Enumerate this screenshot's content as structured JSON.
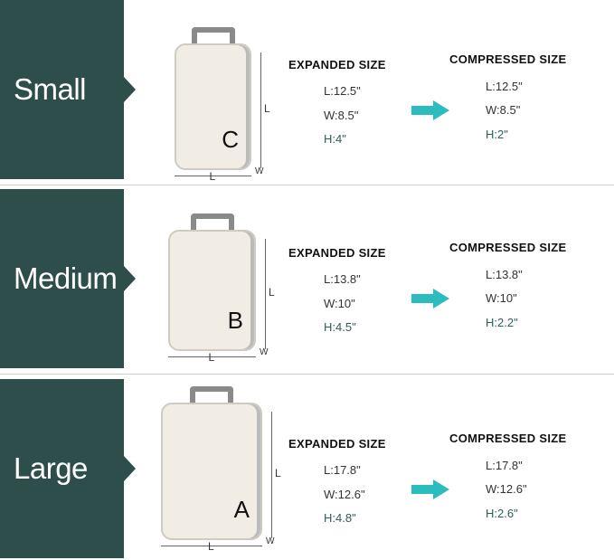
{
  "colors": {
    "label_bg": "#2d4e4a",
    "arrow": "#2bbdbd",
    "height_text": "#2f5d5a"
  },
  "headings": {
    "expanded": "EXPANDED SIZE",
    "compressed": "COMPRESSED SIZE"
  },
  "dimension_labels": {
    "length": "L",
    "width": "W"
  },
  "sizes": [
    {
      "name": "Small",
      "letter": "C",
      "expanded": {
        "l": "L:12.5\"",
        "w": "W:8.5\"",
        "h": "H:4\""
      },
      "compressed": {
        "l": "L:12.5\"",
        "w": "W:8.5\"",
        "h": "H:2\""
      }
    },
    {
      "name": "Medium",
      "letter": "B",
      "expanded": {
        "l": "L:13.8\"",
        "w": "W:10\"",
        "h": "H:4.5\""
      },
      "compressed": {
        "l": "L:13.8\"",
        "w": "W:10\"",
        "h": "H:2.2\""
      }
    },
    {
      "name": "Large",
      "letter": "A",
      "expanded": {
        "l": "L:17.8\"",
        "w": "W:12.6\"",
        "h": "H:4.8\""
      },
      "compressed": {
        "l": "L:17.8\"",
        "w": "W:12.6\"",
        "h": "H:2.6\""
      }
    }
  ]
}
